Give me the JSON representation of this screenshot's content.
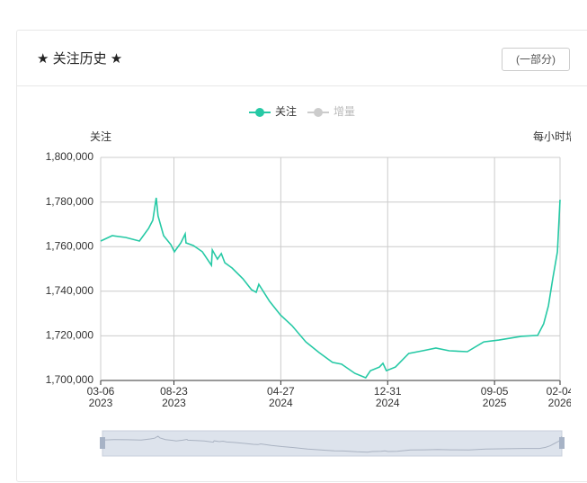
{
  "header": {
    "title": "★ 关注历史 ★",
    "button": "(一部分)"
  },
  "chart_data": {
    "type": "line",
    "y_axis_label": "关注",
    "y2_axis_label": "每小时增量",
    "x": [
      "2023-03-06",
      "2023-04-02",
      "2023-05-03",
      "2023-06-04",
      "2023-06-25",
      "2023-07-05",
      "2023-07-13",
      "2023-07-17",
      "2023-07-30",
      "2023-08-16",
      "2023-08-24",
      "2023-09-08",
      "2023-09-18",
      "2023-09-20",
      "2023-10-07",
      "2023-10-28",
      "2023-11-18",
      "2023-11-20",
      "2023-12-02",
      "2023-12-11",
      "2023-12-19",
      "2024-01-05",
      "2024-01-30",
      "2024-02-19",
      "2024-03-01",
      "2024-03-07",
      "2024-04-01",
      "2024-04-26",
      "2024-05-23",
      "2024-06-24",
      "2024-07-25",
      "2024-08-25",
      "2024-09-15",
      "2024-10-16",
      "2024-11-10",
      "2024-11-21",
      "2024-12-12",
      "2024-12-20",
      "2024-12-28",
      "2025-01-18",
      "2025-02-18",
      "2025-03-22",
      "2025-04-22",
      "2025-05-23",
      "2025-07-04",
      "2025-08-11",
      "2025-09-15",
      "2025-11-06",
      "2025-12-14",
      "2025-12-28",
      "2026-01-08",
      "2026-01-18",
      "2026-01-29",
      "2026-02-04"
    ],
    "series": [
      {
        "name": "关注",
        "color": "#26c9a5",
        "values": [
          1762500,
          1764900,
          1764100,
          1762500,
          1768100,
          1771800,
          1781900,
          1773800,
          1764900,
          1760900,
          1757700,
          1761700,
          1765700,
          1761700,
          1760500,
          1757700,
          1751600,
          1758500,
          1754400,
          1756900,
          1752800,
          1750400,
          1745600,
          1740700,
          1739500,
          1743100,
          1735500,
          1729400,
          1724600,
          1717300,
          1712500,
          1708100,
          1707300,
          1703200,
          1701200,
          1704400,
          1706000,
          1707700,
          1704400,
          1706000,
          1712100,
          1713300,
          1714500,
          1713300,
          1712900,
          1717300,
          1718100,
          1719800,
          1720200,
          1725400,
          1733500,
          1745600,
          1757700,
          1781000
        ]
      }
    ],
    "inactive_series": [
      {
        "name": "增量",
        "color": "#cccccc"
      }
    ],
    "xlim": [
      "2023-03-06",
      "2026-02-04"
    ],
    "xticks": [
      {
        "value": "2023-03-06",
        "label": "03-06",
        "year": "2023"
      },
      {
        "value": "2023-08-23",
        "label": "08-23",
        "year": "2023"
      },
      {
        "value": "2024-04-27",
        "label": "04-27",
        "year": "2024"
      },
      {
        "value": "2024-12-31",
        "label": "12-31",
        "year": "2024"
      },
      {
        "value": "2025-09-05",
        "label": "09-05",
        "year": "2025"
      },
      {
        "value": "2026-02-04",
        "label": "02-04",
        "year": "2026"
      }
    ],
    "ylim": [
      1700000,
      1800000
    ],
    "yticks": [
      {
        "value": 1700000,
        "label": "1,700,000"
      },
      {
        "value": 1720000,
        "label": "1,720,000"
      },
      {
        "value": 1740000,
        "label": "1,740,000"
      },
      {
        "value": 1760000,
        "label": "1,760,000"
      },
      {
        "value": 1780000,
        "label": "1,780,000"
      },
      {
        "value": 1800000,
        "label": "1,800,000"
      }
    ],
    "grid": true
  }
}
